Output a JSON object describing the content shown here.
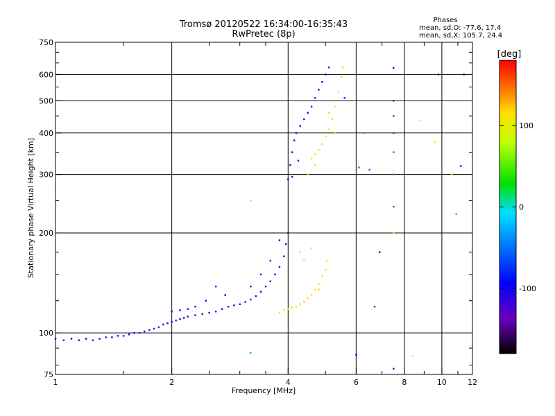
{
  "chart_data": {
    "type": "scatter",
    "title": "Tromsø 20120522 16:34:00-16:35:43",
    "subtitle": "RwPretec (8p)",
    "xlabel": "Frequency [MHz]",
    "ylabel": "Stationary phase Virtual Height [km]",
    "x_scale": "log",
    "y_scale": "log",
    "xlim": [
      1,
      12
    ],
    "ylim": [
      75,
      750
    ],
    "x_ticks": [
      1,
      2,
      4,
      6,
      8,
      10,
      12
    ],
    "y_ticks": [
      75,
      100,
      200,
      300,
      400,
      500,
      600,
      750
    ],
    "x_gridlines": [
      2,
      4,
      6,
      8,
      10
    ],
    "y_gridlines": [
      100,
      200,
      300,
      400,
      500,
      600
    ],
    "grid": true,
    "legend": {
      "heading": "Phases",
      "line1": "mean, sd,O: -77.6, 17.4",
      "line2": "mean, sd,X: 105.7, 24.4"
    },
    "colorbar": {
      "label": "[deg]",
      "ticks": [
        100,
        0,
        -100
      ],
      "range": [
        -180,
        180
      ]
    },
    "series": [
      {
        "mode": "O",
        "points": [
          [
            1.0,
            96,
            -95
          ],
          [
            1.05,
            95,
            -100
          ],
          [
            1.1,
            96,
            -92
          ],
          [
            1.15,
            95,
            -105
          ],
          [
            1.2,
            96,
            -98
          ],
          [
            1.25,
            95,
            -90
          ],
          [
            1.3,
            96,
            -102
          ],
          [
            1.35,
            97,
            -88
          ],
          [
            1.4,
            97,
            -95
          ],
          [
            1.45,
            98,
            -110
          ],
          [
            1.5,
            98,
            -85
          ],
          [
            1.55,
            99,
            -97
          ],
          [
            1.6,
            100,
            -100
          ],
          [
            1.65,
            100,
            -92
          ],
          [
            1.7,
            101,
            -104
          ],
          [
            1.75,
            102,
            -88
          ],
          [
            1.8,
            103,
            -95
          ],
          [
            1.85,
            104,
            -80
          ],
          [
            1.9,
            106,
            -96
          ],
          [
            1.95,
            107,
            -90
          ],
          [
            2.0,
            108,
            -100
          ],
          [
            2.05,
            109,
            -85
          ],
          [
            2.1,
            110,
            -92
          ],
          [
            2.15,
            111,
            -104
          ],
          [
            2.2,
            112,
            -95
          ],
          [
            2.3,
            113,
            -88
          ],
          [
            2.4,
            114,
            -100
          ],
          [
            2.5,
            115,
            -90
          ],
          [
            2.6,
            116,
            -96
          ],
          [
            2.7,
            118,
            -85
          ],
          [
            2.8,
            120,
            -100
          ],
          [
            2.9,
            121,
            -92
          ],
          [
            3.0,
            122,
            -95
          ],
          [
            3.1,
            124,
            -88
          ],
          [
            3.2,
            126,
            -100
          ],
          [
            3.3,
            129,
            -90
          ],
          [
            3.4,
            133,
            -95
          ],
          [
            3.5,
            138,
            -85
          ],
          [
            3.6,
            143,
            -100
          ],
          [
            3.7,
            150,
            -92
          ],
          [
            3.8,
            158,
            -88
          ],
          [
            3.9,
            170,
            -95
          ],
          [
            3.95,
            185,
            -90
          ],
          [
            4.0,
            200,
            -100
          ],
          [
            4.0,
            290,
            -95
          ],
          [
            4.05,
            320,
            -88
          ],
          [
            4.1,
            350,
            -100
          ],
          [
            4.15,
            380,
            -90
          ],
          [
            4.2,
            400,
            -85
          ],
          [
            4.3,
            420,
            -95
          ],
          [
            4.4,
            440,
            -100
          ],
          [
            4.5,
            460,
            -90
          ],
          [
            4.6,
            480,
            -88
          ],
          [
            4.7,
            510,
            -80
          ],
          [
            4.8,
            540,
            -95
          ],
          [
            4.9,
            570,
            -90
          ],
          [
            5.0,
            600,
            -100
          ],
          [
            5.1,
            630,
            -85
          ],
          [
            2.0,
            116,
            -110
          ],
          [
            2.1,
            117,
            -120
          ],
          [
            2.2,
            118,
            -112
          ],
          [
            2.3,
            120,
            -105
          ],
          [
            2.45,
            125,
            -110
          ],
          [
            2.6,
            138,
            -100
          ],
          [
            2.75,
            130,
            -96
          ],
          [
            3.2,
            138,
            -102
          ],
          [
            3.4,
            150,
            -98
          ],
          [
            3.6,
            165,
            -95
          ],
          [
            3.8,
            190,
            -100
          ],
          [
            4.1,
            295,
            -120
          ],
          [
            4.25,
            330,
            -105
          ]
        ]
      },
      {
        "mode": "X",
        "points": [
          [
            3.8,
            115,
            105
          ],
          [
            3.9,
            117,
            110
          ],
          [
            4.0,
            118,
            95
          ],
          [
            4.1,
            119,
            115
          ],
          [
            4.2,
            120,
            100
          ],
          [
            4.3,
            122,
            110
          ],
          [
            4.4,
            124,
            120
          ],
          [
            4.5,
            127,
            105
          ],
          [
            4.6,
            130,
            110
          ],
          [
            4.7,
            135,
            100
          ],
          [
            4.8,
            140,
            115
          ],
          [
            4.9,
            148,
            108
          ],
          [
            5.0,
            155,
            100
          ],
          [
            5.05,
            165,
            112
          ],
          [
            4.3,
            175,
            118
          ],
          [
            4.4,
            165,
            108
          ],
          [
            4.6,
            180,
            96
          ],
          [
            4.8,
            135,
            120
          ],
          [
            4.6,
            335,
            95
          ],
          [
            4.7,
            345,
            110
          ],
          [
            4.8,
            355,
            105
          ],
          [
            4.9,
            370,
            100
          ],
          [
            5.0,
            390,
            115
          ],
          [
            5.1,
            410,
            110
          ],
          [
            5.2,
            440,
            100
          ],
          [
            5.3,
            480,
            105
          ],
          [
            5.4,
            530,
            112
          ],
          [
            5.5,
            590,
            100
          ],
          [
            5.55,
            630,
            108
          ],
          [
            4.5,
            300,
            120
          ],
          [
            4.7,
            320,
            90
          ],
          [
            5.3,
            400,
            70
          ],
          [
            5.1,
            460,
            80
          ],
          [
            8.8,
            435,
            110
          ],
          [
            9.6,
            375,
            95
          ],
          [
            3.2,
            250,
            112
          ]
        ]
      },
      {
        "mode": "noise",
        "points": [
          [
            7.5,
            628,
            -95
          ],
          [
            7.5,
            500,
            -80
          ],
          [
            7.5,
            450,
            -60
          ],
          [
            7.5,
            400,
            -70
          ],
          [
            7.5,
            350,
            -50
          ],
          [
            7.5,
            300,
            -40
          ],
          [
            7.5,
            240,
            -60
          ],
          [
            7.5,
            200,
            110
          ],
          [
            7.5,
            78,
            -90
          ],
          [
            6.0,
            86,
            -95
          ],
          [
            6.1,
            315,
            -50
          ],
          [
            6.5,
            310,
            -60
          ],
          [
            6.9,
            175,
            -110
          ],
          [
            6.3,
            400,
            -40
          ],
          [
            11.2,
            318,
            -100
          ],
          [
            11.4,
            600,
            -105
          ],
          [
            9.8,
            600,
            -100
          ],
          [
            10.9,
            228,
            -20
          ],
          [
            10.6,
            300,
            90
          ],
          [
            8.4,
            85,
            100
          ],
          [
            3.2,
            87,
            30
          ],
          [
            6.7,
            120,
            -120
          ],
          [
            5.6,
            510,
            -80
          ]
        ]
      }
    ]
  }
}
